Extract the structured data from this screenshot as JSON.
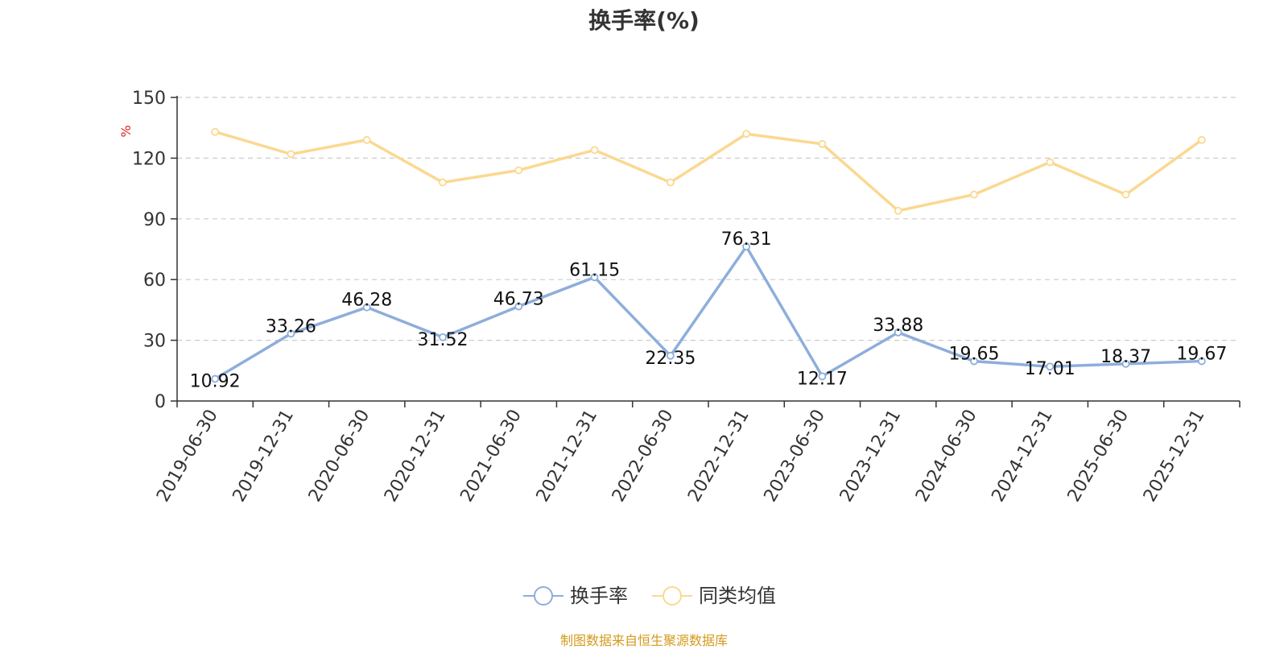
{
  "chart_data": {
    "type": "line",
    "title": "换手率(%)",
    "ylabel": "%",
    "xlabel": "",
    "ylim": [
      0,
      150
    ],
    "yticks": [
      0,
      30,
      60,
      90,
      120,
      150
    ],
    "grid": true,
    "legend_position": "bottom-center",
    "categories": [
      "2019-06-30",
      "2019-12-31",
      "2020-06-30",
      "2020-12-31",
      "2021-06-30",
      "2021-12-31",
      "2022-06-30",
      "2022-12-31",
      "2023-06-30",
      "2023-12-31",
      "2024-06-30",
      "2024-12-31",
      "2025-06-30",
      "2025-12-31"
    ],
    "series": [
      {
        "name": "换手率",
        "color": "#8eaedb",
        "show_labels": true,
        "values": [
          10.92,
          33.26,
          46.28,
          31.52,
          46.73,
          61.15,
          22.35,
          76.31,
          12.17,
          33.88,
          19.65,
          17.01,
          18.37,
          19.67
        ]
      },
      {
        "name": "同类均值",
        "color": "#fbd891",
        "show_labels": false,
        "values": [
          133,
          122,
          129,
          108,
          114,
          124,
          108,
          132,
          127,
          94,
          102,
          118,
          102,
          129
        ]
      }
    ]
  },
  "source": "制图数据来自恒生聚源数据库"
}
